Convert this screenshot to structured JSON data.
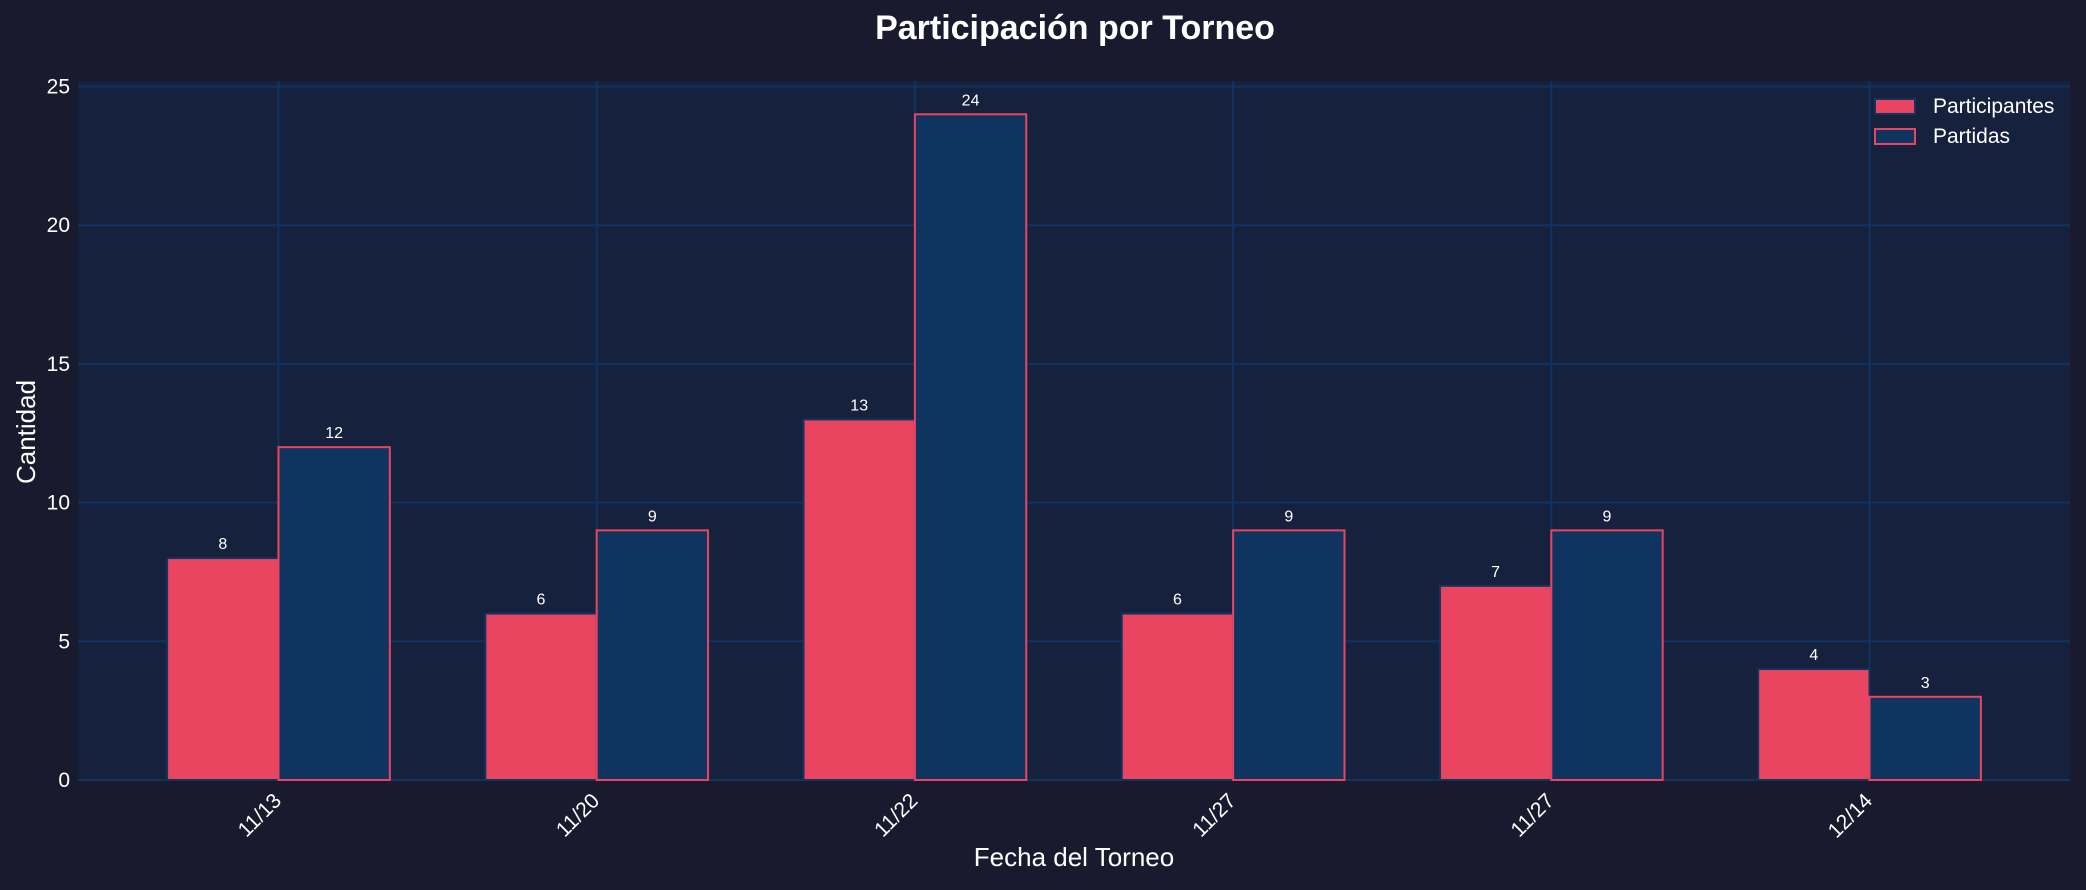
{
  "chart_data": {
    "type": "bar",
    "title": "Participación por Torneo",
    "xlabel": "Fecha del Torneo",
    "ylabel": "Cantidad",
    "categories": [
      "11/13",
      "11/20",
      "11/22",
      "11/27",
      "11/27",
      "12/14"
    ],
    "series": [
      {
        "name": "Participantes",
        "values": [
          8,
          6,
          13,
          6,
          7,
          4
        ],
        "color": "#e94560",
        "edge_color": "#0f3460"
      },
      {
        "name": "Partidas",
        "values": [
          12,
          9,
          24,
          9,
          9,
          3
        ],
        "color": "#0f3460",
        "edge_color": "#e94560"
      }
    ],
    "ylim": [
      0,
      25.2
    ],
    "yticks": [
      0,
      5,
      10,
      15,
      20,
      25
    ],
    "grid": true,
    "legend_position": "top-right",
    "data_labels": true,
    "colors": {
      "figure_bg": "#1a1a2e",
      "plot_bg": "#16213e",
      "grid": "#0f3460",
      "text": "#ffffff"
    }
  }
}
